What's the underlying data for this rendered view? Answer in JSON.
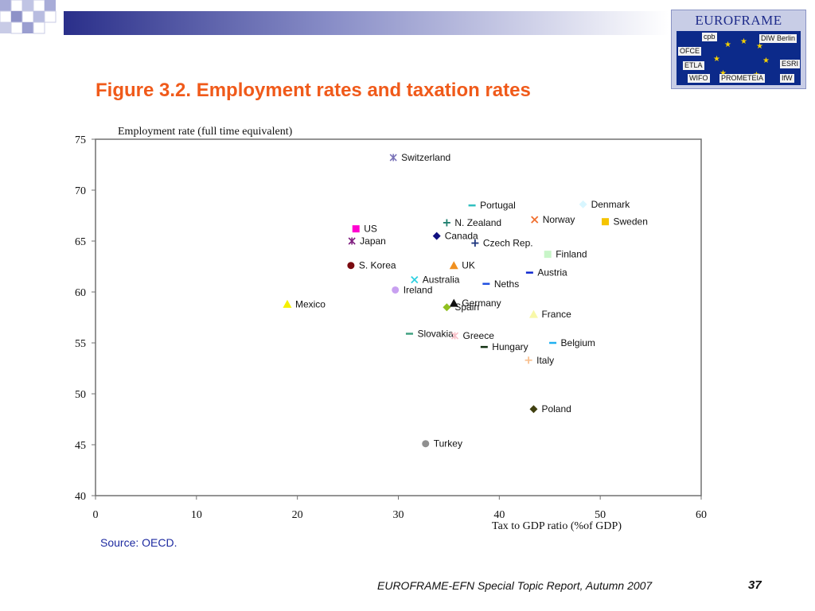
{
  "header": {
    "title": "Figure 3.2. Employment rates and taxation rates"
  },
  "logo": {
    "name": "EUROFRAME",
    "tags": [
      "cpb",
      "DIW Berlin",
      "OFCE",
      "ETLA",
      "WIFO",
      "PROMETEIA",
      "ESRI",
      "IfW"
    ]
  },
  "source": "Source: OECD.",
  "footer": {
    "text": "EUROFRAME-EFN Special Topic Report, Autumn 2007",
    "page": "37"
  },
  "colors": {
    "title": "#f05a1a",
    "source": "#1d2aa0"
  },
  "chart_data": {
    "type": "scatter",
    "xlabel": "Tax to GDP ratio (%of GDP)",
    "ylabel": "Employment rate (full time equivalent)",
    "xlim": [
      0,
      60
    ],
    "ylim": [
      40,
      75
    ],
    "xticks": [
      0,
      10,
      20,
      30,
      40,
      50,
      60
    ],
    "yticks": [
      40,
      45,
      50,
      55,
      60,
      65,
      70,
      75
    ],
    "grid": false,
    "points": [
      {
        "label": "Switzerland",
        "x": 29.5,
        "y": 73.2,
        "marker": "asterisk",
        "color": "#7a73b8"
      },
      {
        "label": "Denmark",
        "x": 48.3,
        "y": 68.6,
        "marker": "diamond",
        "color": "#d8f6ff"
      },
      {
        "label": "Portugal",
        "x": 37.3,
        "y": 68.5,
        "marker": "dash",
        "color": "#30c0c0"
      },
      {
        "label": "Norway",
        "x": 43.5,
        "y": 67.1,
        "marker": "x",
        "color": "#f07030"
      },
      {
        "label": "Sweden",
        "x": 50.5,
        "y": 66.9,
        "marker": "square",
        "color": "#f5c400"
      },
      {
        "label": "N. Zealand",
        "x": 34.8,
        "y": 66.8,
        "marker": "plus",
        "color": "#208070"
      },
      {
        "label": "US",
        "x": 25.8,
        "y": 66.2,
        "marker": "square",
        "color": "#ff00d0"
      },
      {
        "label": "Canada",
        "x": 33.8,
        "y": 65.5,
        "marker": "diamond",
        "color": "#101080"
      },
      {
        "label": "Japan",
        "x": 25.4,
        "y": 65.0,
        "marker": "asterisk",
        "color": "#802080"
      },
      {
        "label": "Czech Rep.",
        "x": 37.6,
        "y": 64.8,
        "marker": "plus",
        "color": "#203880"
      },
      {
        "label": "Finland",
        "x": 44.8,
        "y": 63.7,
        "marker": "square",
        "color": "#c8f5c8"
      },
      {
        "label": "S. Korea",
        "x": 25.3,
        "y": 62.6,
        "marker": "circle",
        "color": "#7a0a10"
      },
      {
        "label": "UK",
        "x": 35.5,
        "y": 62.6,
        "marker": "triangle",
        "color": "#f09020"
      },
      {
        "label": "Austria",
        "x": 43.0,
        "y": 61.9,
        "marker": "dash",
        "color": "#1028d0"
      },
      {
        "label": "Australia",
        "x": 31.6,
        "y": 61.2,
        "marker": "x",
        "color": "#30d0e0"
      },
      {
        "label": "Neths",
        "x": 38.7,
        "y": 60.8,
        "marker": "dash",
        "color": "#2050e0"
      },
      {
        "label": "Ireland",
        "x": 29.7,
        "y": 60.2,
        "marker": "circle",
        "color": "#c8a0f0"
      },
      {
        "label": "Mexico",
        "x": 19.0,
        "y": 58.8,
        "marker": "triangle",
        "color": "#f5f000"
      },
      {
        "label": "Germany",
        "x": 35.5,
        "y": 58.9,
        "marker": "triangle",
        "color": "#101010"
      },
      {
        "label": "Spain",
        "x": 34.8,
        "y": 58.5,
        "marker": "diamond",
        "color": "#90c020"
      },
      {
        "label": "France",
        "x": 43.4,
        "y": 57.8,
        "marker": "triangle",
        "color": "#f8f8a8"
      },
      {
        "label": "Slovakia",
        "x": 31.1,
        "y": 55.9,
        "marker": "dash",
        "color": "#40a080"
      },
      {
        "label": "Greece",
        "x": 35.6,
        "y": 55.7,
        "marker": "asterisk",
        "color": "#f8c0c8"
      },
      {
        "label": "Belgium",
        "x": 45.3,
        "y": 55.0,
        "marker": "dash",
        "color": "#20b0f0"
      },
      {
        "label": "Hungary",
        "x": 38.5,
        "y": 54.6,
        "marker": "dash",
        "color": "#103010"
      },
      {
        "label": "Italy",
        "x": 42.9,
        "y": 53.3,
        "marker": "plus",
        "color": "#f8c090"
      },
      {
        "label": "Poland",
        "x": 43.4,
        "y": 48.5,
        "marker": "diamond",
        "color": "#404010"
      },
      {
        "label": "Turkey",
        "x": 32.7,
        "y": 45.1,
        "marker": "circle",
        "color": "#909090"
      }
    ]
  }
}
